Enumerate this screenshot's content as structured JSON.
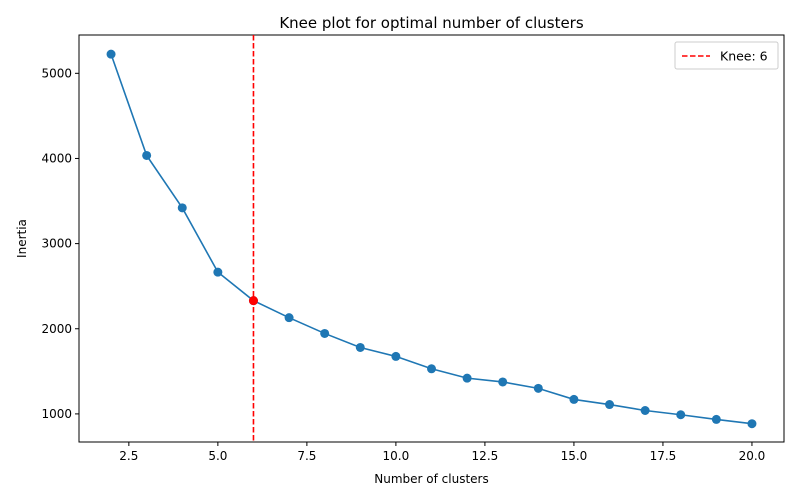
{
  "chart_data": {
    "type": "line",
    "title": "Knee plot for optimal number of clusters",
    "xlabel": "Number of clusters",
    "ylabel": "Inertia",
    "xlim": [
      1.1,
      20.9
    ],
    "ylim": [
      670,
      5450
    ],
    "xticks": [
      2.5,
      5.0,
      7.5,
      10.0,
      12.5,
      15.0,
      17.5,
      20.0
    ],
    "xtick_labels": [
      "2.5",
      "5.0",
      "7.5",
      "10.0",
      "12.5",
      "15.0",
      "17.5",
      "20.0"
    ],
    "yticks": [
      1000,
      2000,
      3000,
      4000,
      5000
    ],
    "ytick_labels": [
      "1000",
      "2000",
      "3000",
      "4000",
      "5000"
    ],
    "grid": false,
    "legend_position": "top-right",
    "series": [
      {
        "color": "#1f77b4",
        "marker": "circle",
        "x": [
          2,
          3,
          4,
          5,
          6,
          7,
          8,
          9,
          10,
          11,
          12,
          13,
          14,
          15,
          16,
          17,
          18,
          19,
          20
        ],
        "y": [
          5225,
          4035,
          3420,
          2665,
          2330,
          2130,
          1945,
          1780,
          1675,
          1530,
          1420,
          1375,
          1300,
          1170,
          1110,
          1040,
          990,
          935,
          885
        ]
      }
    ],
    "knee": {
      "x": 6,
      "y": 2330,
      "color": "#ff0000",
      "line_style": "dashed",
      "legend_label": "Knee: 6"
    }
  }
}
